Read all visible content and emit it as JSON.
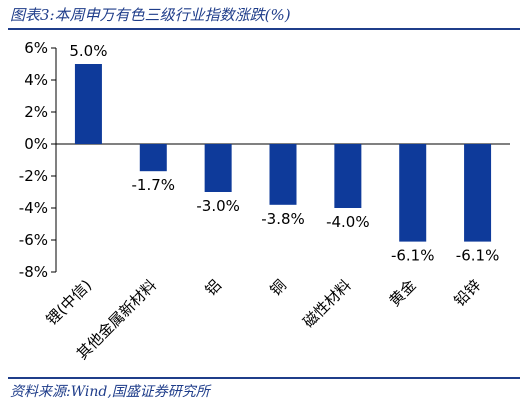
{
  "header": {
    "title": "图表3:本周申万有色三级行业指数涨跌(%)"
  },
  "footer": {
    "source": "资料来源:Wind,国盛证券研究所"
  },
  "chart_data": {
    "type": "bar",
    "title": "图表3:本周申万有色三级行业指数涨跌(%)",
    "categories": [
      "锂(中信)",
      "其他金属新材料",
      "铝",
      "铜",
      "磁性材料",
      "黄金",
      "铅锌"
    ],
    "values": [
      5.0,
      -1.7,
      -3.0,
      -3.8,
      -4.0,
      -6.1,
      -6.1
    ],
    "data_labels": [
      "5.0%",
      "-1.7%",
      "-3.0%",
      "-3.8%",
      "-4.0%",
      "-6.1%",
      "-6.1%"
    ],
    "ylim": [
      -8,
      6
    ],
    "yticks": [
      6,
      4,
      2,
      0,
      -2,
      -4,
      -6,
      -8
    ],
    "ytick_labels": [
      "6%",
      "4%",
      "2%",
      "0%",
      "-2%",
      "-4%",
      "-6%",
      "-8%"
    ],
    "grid": false,
    "legend": "none",
    "bar_color": "#0e3a9a",
    "title_color": "#1f3d8a"
  }
}
